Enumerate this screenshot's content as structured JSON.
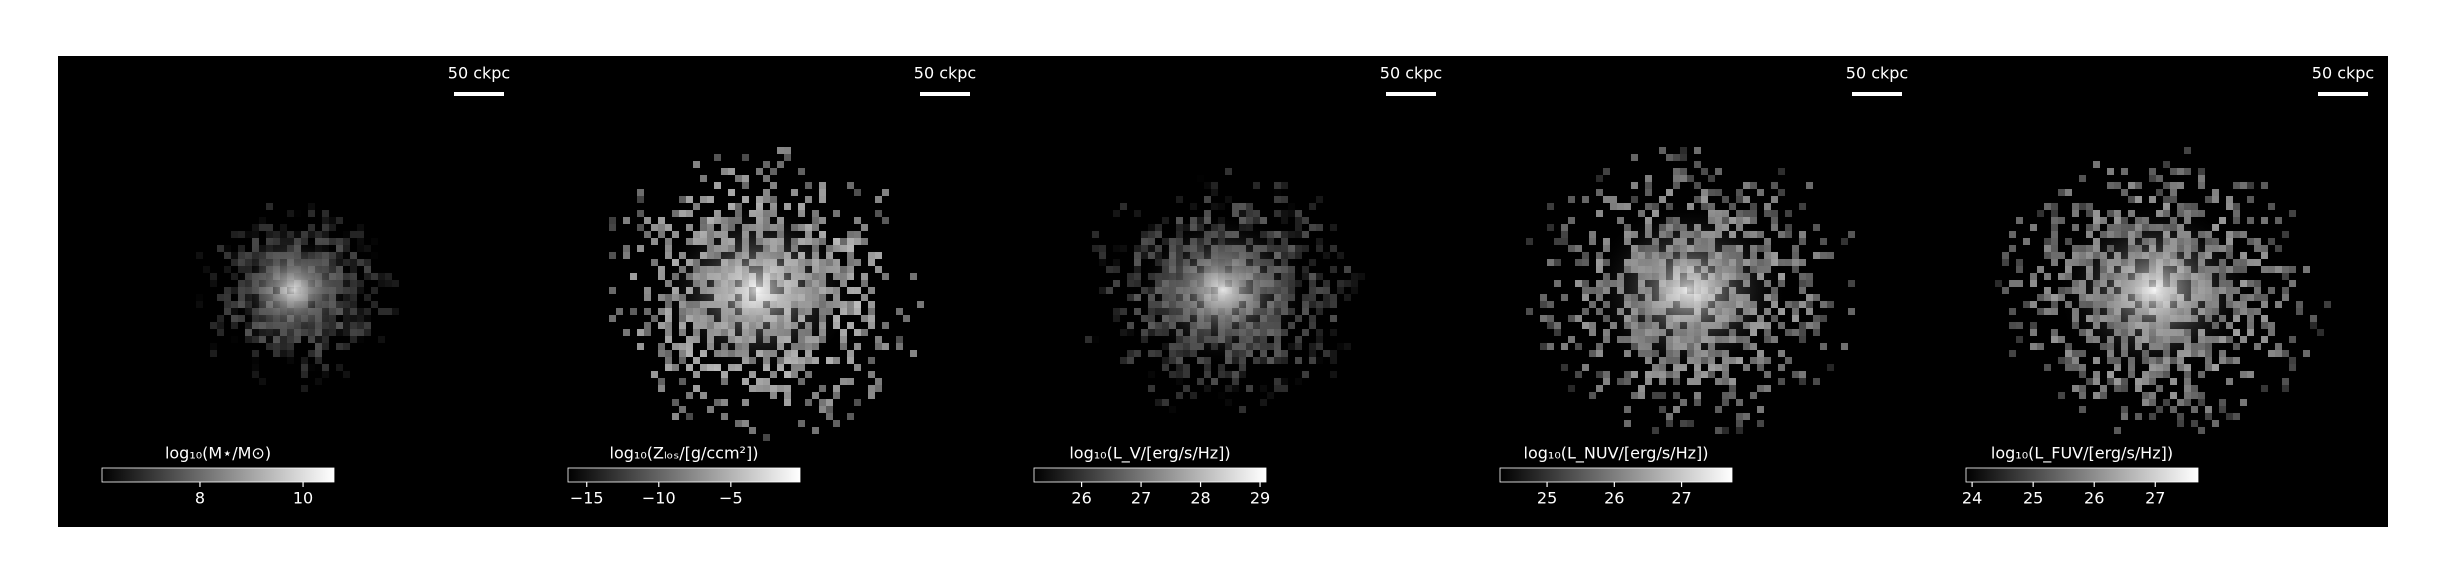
{
  "chart_data": [
    {
      "type": "image",
      "scale_label": "50 ckpc",
      "colorbar": {
        "label": "log₁₀(M⋆/M⊙)",
        "lim": [
          6.1,
          10.6
        ],
        "ticks": [
          8,
          10
        ]
      }
    },
    {
      "type": "image",
      "scale_label": "50 ckpc",
      "colorbar": {
        "label": "log₁₀(Zₗₒₛ/[g/ccm²])",
        "lim": [
          -16.3,
          -0.2
        ],
        "ticks": [
          {
            "value": -15,
            "label": "−15"
          },
          {
            "value": -10,
            "label": "−10"
          },
          {
            "value": -5,
            "label": "−5"
          }
        ]
      }
    },
    {
      "type": "image",
      "scale_label": "50 ckpc",
      "colorbar": {
        "label": "log₁₀(L_V/[erg/s/Hz])",
        "lim": [
          25.2,
          29.1
        ],
        "ticks": [
          26,
          27,
          28,
          29
        ]
      }
    },
    {
      "type": "image",
      "scale_label": "50 ckpc",
      "colorbar": {
        "label": "log₁₀(L_NUV/[erg/s/Hz])",
        "lim": [
          24.3,
          27.75
        ],
        "ticks": [
          25,
          26,
          27
        ]
      }
    },
    {
      "type": "image",
      "scale_label": "50 ckpc",
      "colorbar": {
        "label": "log₁₀(L_FUV/[erg/s/Hz])",
        "lim": [
          23.9,
          27.7
        ],
        "ticks": [
          24,
          25,
          26,
          27
        ]
      }
    }
  ]
}
